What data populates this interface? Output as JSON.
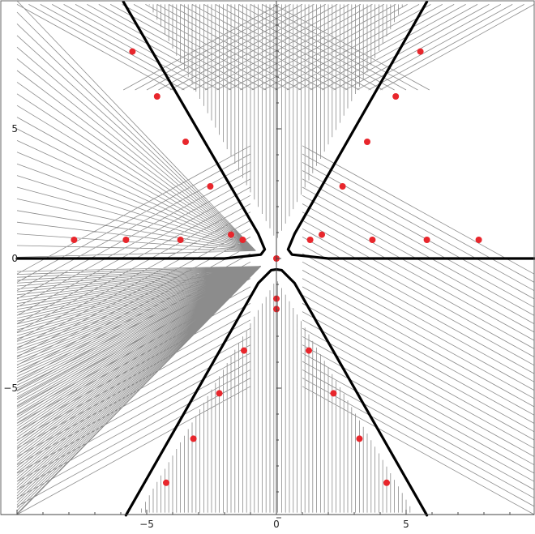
{
  "chart_data": {
    "type": "scatter",
    "title": "",
    "xlabel": "",
    "ylabel": "",
    "xlim": [
      -10,
      10
    ],
    "ylim": [
      -10,
      10
    ],
    "x_ticks": [
      {
        "value": -5,
        "label": "−5"
      },
      {
        "value": 0,
        "label": "0"
      },
      {
        "value": 5,
        "label": "5"
      }
    ],
    "y_ticks": [
      {
        "value": 5,
        "label": "5"
      },
      {
        "value": 0,
        "label": "0"
      },
      {
        "value": -5,
        "label": "−5"
      }
    ],
    "points": [
      {
        "x": 0.0,
        "y": 0.0
      },
      {
        "x": 0.0,
        "y": -1.55
      },
      {
        "x": 0.0,
        "y": -1.95
      },
      {
        "x": -1.3,
        "y": 0.72
      },
      {
        "x": -1.75,
        "y": 0.92
      },
      {
        "x": -3.7,
        "y": 0.72
      },
      {
        "x": -5.8,
        "y": 0.72
      },
      {
        "x": -7.8,
        "y": 0.72
      },
      {
        "x": 1.3,
        "y": 0.72
      },
      {
        "x": 1.75,
        "y": 0.92
      },
      {
        "x": 3.7,
        "y": 0.72
      },
      {
        "x": 5.8,
        "y": 0.72
      },
      {
        "x": 7.8,
        "y": 0.72
      },
      {
        "x": -2.55,
        "y": 2.78
      },
      {
        "x": -3.5,
        "y": 4.5
      },
      {
        "x": -4.6,
        "y": 6.25
      },
      {
        "x": -5.55,
        "y": 7.98
      },
      {
        "x": 2.55,
        "y": 2.78
      },
      {
        "x": 3.5,
        "y": 4.5
      },
      {
        "x": 4.6,
        "y": 6.25
      },
      {
        "x": 5.55,
        "y": 7.98
      },
      {
        "x": -1.25,
        "y": -3.55
      },
      {
        "x": -2.2,
        "y": -5.2
      },
      {
        "x": -3.2,
        "y": -6.95
      },
      {
        "x": -4.25,
        "y": -8.65
      },
      {
        "x": 1.25,
        "y": -3.55
      },
      {
        "x": 2.2,
        "y": -5.2
      },
      {
        "x": 3.2,
        "y": -6.95
      },
      {
        "x": 4.25,
        "y": -8.65
      }
    ],
    "boundaries": [
      {
        "name": "",
        "points": [
          [
            -10,
            0
          ],
          [
            -2,
            0
          ],
          [
            -0.6,
            0.15
          ],
          [
            -0.45,
            0.35
          ],
          [
            -0.7,
            0.95
          ],
          [
            -5.9,
            9.9
          ]
        ]
      },
      {
        "name": "",
        "points": [
          [
            10,
            0
          ],
          [
            2,
            0
          ],
          [
            0.6,
            0.15
          ],
          [
            0.45,
            0.35
          ],
          [
            0.7,
            0.95
          ],
          [
            5.8,
            9.9
          ]
        ]
      },
      {
        "name": "",
        "points": [
          [
            -5.8,
            -9.9
          ],
          [
            -0.7,
            -0.95
          ],
          [
            -0.2,
            -0.45
          ],
          [
            0,
            -0.42
          ],
          [
            0.2,
            -0.45
          ],
          [
            0.7,
            -0.95
          ],
          [
            5.8,
            -9.9
          ]
        ]
      }
    ],
    "colors": {
      "points": "#e8262c",
      "flow": "#8c8c8c",
      "boundary": "#000000"
    }
  }
}
